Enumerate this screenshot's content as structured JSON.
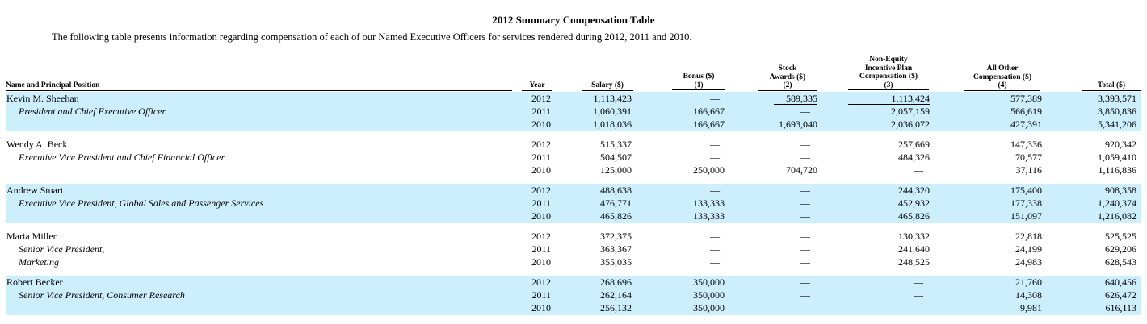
{
  "title": "2012 Summary Compensation Table",
  "intro": "The following table presents information regarding compensation of each of our Named Executive Officers for services rendered during 2012, 2011 and 2010.",
  "headers": {
    "name": "Name and Principal Position",
    "year": "Year",
    "salary": "Salary ($)",
    "bonus_1": "Bonus ($)",
    "bonus_2": "(1)",
    "stock_1": "Stock",
    "stock_2": "Awards ($)",
    "stock_3": "(2)",
    "neip_1": "Non-Equity",
    "neip_2": "Incentive Plan",
    "neip_3": "Compensation ($)",
    "neip_4": "(3)",
    "other_1": "All Other",
    "other_2": "Compensation ($)",
    "other_3": "(4)",
    "total": "Total ($)"
  },
  "dash": "—",
  "officers": [
    {
      "name": "Kevin M. Sheehan",
      "title_lines": [
        "President and Chief Executive Officer"
      ],
      "rows": [
        {
          "year": "2012",
          "salary": "1,113,423",
          "bonus": "—",
          "stock": "589,335",
          "neip": "1,113,424",
          "other": "577,389",
          "total": "3,393,571"
        },
        {
          "year": "2011",
          "salary": "1,060,391",
          "bonus": "166,667",
          "stock": "—",
          "neip": "2,057,159",
          "other": "566,619",
          "total": "3,850,836"
        },
        {
          "year": "2010",
          "salary": "1,018,036",
          "bonus": "166,667",
          "stock": "1,693,040",
          "neip": "2,036,072",
          "other": "427,391",
          "total": "5,341,206"
        }
      ]
    },
    {
      "name": "Wendy A. Beck",
      "title_lines": [
        "Executive Vice President and Chief Financial Officer"
      ],
      "rows": [
        {
          "year": "2012",
          "salary": "515,337",
          "bonus": "—",
          "stock": "—",
          "neip": "257,669",
          "other": "147,336",
          "total": "920,342"
        },
        {
          "year": "2011",
          "salary": "504,507",
          "bonus": "—",
          "stock": "—",
          "neip": "484,326",
          "other": "70,577",
          "total": "1,059,410"
        },
        {
          "year": "2010",
          "salary": "125,000",
          "bonus": "250,000",
          "stock": "704,720",
          "neip": "—",
          "other": "37,116",
          "total": "1,116,836"
        }
      ]
    },
    {
      "name": "Andrew Stuart",
      "title_lines": [
        "Executive Vice President, Global Sales and Passenger Services"
      ],
      "rows": [
        {
          "year": "2012",
          "salary": "488,638",
          "bonus": "—",
          "stock": "—",
          "neip": "244,320",
          "other": "175,400",
          "total": "908,358"
        },
        {
          "year": "2011",
          "salary": "476,771",
          "bonus": "133,333",
          "stock": "—",
          "neip": "452,932",
          "other": "177,338",
          "total": "1,240,374"
        },
        {
          "year": "2010",
          "salary": "465,826",
          "bonus": "133,333",
          "stock": "—",
          "neip": "465,826",
          "other": "151,097",
          "total": "1,216,082"
        }
      ]
    },
    {
      "name": "Maria Miller",
      "title_lines": [
        "Senior Vice President,",
        "Marketing"
      ],
      "rows": [
        {
          "year": "2012",
          "salary": "372,375",
          "bonus": "—",
          "stock": "—",
          "neip": "130,332",
          "other": "22,818",
          "total": "525,525"
        },
        {
          "year": "2011",
          "salary": "363,367",
          "bonus": "—",
          "stock": "—",
          "neip": "241,640",
          "other": "24,199",
          "total": "629,206"
        },
        {
          "year": "2010",
          "salary": "355,035",
          "bonus": "—",
          "stock": "—",
          "neip": "248,525",
          "other": "24,983",
          "total": "628,543"
        }
      ]
    },
    {
      "name": "Robert Becker",
      "title_lines": [
        "Senior Vice President, Consumer Research"
      ],
      "rows": [
        {
          "year": "2012",
          "salary": "268,696",
          "bonus": "350,000",
          "stock": "—",
          "neip": "—",
          "other": "21,760",
          "total": "640,456"
        },
        {
          "year": "2011",
          "salary": "262,164",
          "bonus": "350,000",
          "stock": "—",
          "neip": "—",
          "other": "14,308",
          "total": "626,472"
        },
        {
          "year": "2010",
          "salary": "256,132",
          "bonus": "350,000",
          "stock": "—",
          "neip": "—",
          "other": "9,981",
          "total": "616,113"
        }
      ]
    }
  ]
}
